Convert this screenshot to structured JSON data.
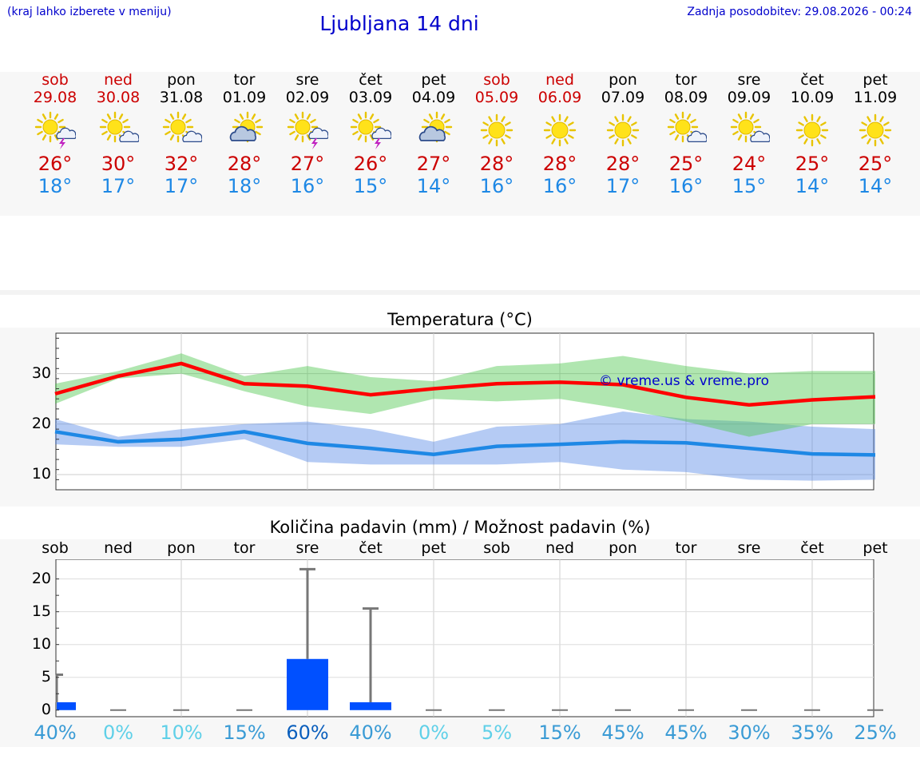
{
  "header": {
    "hint": "(kraj lahko izberete v meniju)",
    "title": "Ljubljana 14 dni",
    "updated": "Zadnja posodobitev: 29.08.2026 - 00:24"
  },
  "colors": {
    "weekend": "#cc0000",
    "max": "#cc0000",
    "min": "#1e88e5",
    "bar": "#0050ff",
    "link": "#0000cc"
  },
  "days": [
    {
      "name": "sob",
      "date": "29.08",
      "weekend": true,
      "icon": "sun-cloud-thunder-icon",
      "tmax": "26°",
      "tmin": "18°"
    },
    {
      "name": "ned",
      "date": "30.08",
      "weekend": true,
      "icon": "sun-cloud-icon",
      "tmax": "30°",
      "tmin": "17°"
    },
    {
      "name": "pon",
      "date": "31.08",
      "weekend": false,
      "icon": "sun-cloud-icon",
      "tmax": "32°",
      "tmin": "17°"
    },
    {
      "name": "tor",
      "date": "01.09",
      "weekend": false,
      "icon": "cloud-sun-icon",
      "tmax": "28°",
      "tmin": "18°"
    },
    {
      "name": "sre",
      "date": "02.09",
      "weekend": false,
      "icon": "sun-cloud-thunder-icon",
      "tmax": "27°",
      "tmin": "16°"
    },
    {
      "name": "čet",
      "date": "03.09",
      "weekend": false,
      "icon": "sun-cloud-thunder-icon",
      "tmax": "26°",
      "tmin": "15°"
    },
    {
      "name": "pet",
      "date": "04.09",
      "weekend": false,
      "icon": "cloud-sun-icon",
      "tmax": "27°",
      "tmin": "14°"
    },
    {
      "name": "sob",
      "date": "05.09",
      "weekend": true,
      "icon": "sun-icon",
      "tmax": "28°",
      "tmin": "16°"
    },
    {
      "name": "ned",
      "date": "06.09",
      "weekend": true,
      "icon": "sun-icon",
      "tmax": "28°",
      "tmin": "16°"
    },
    {
      "name": "pon",
      "date": "07.09",
      "weekend": false,
      "icon": "sun-icon",
      "tmax": "28°",
      "tmin": "17°"
    },
    {
      "name": "tor",
      "date": "08.09",
      "weekend": false,
      "icon": "sun-cloud-icon",
      "tmax": "25°",
      "tmin": "16°"
    },
    {
      "name": "sre",
      "date": "09.09",
      "weekend": false,
      "icon": "sun-cloud-icon",
      "tmax": "24°",
      "tmin": "15°"
    },
    {
      "name": "čet",
      "date": "10.09",
      "weekend": false,
      "icon": "sun-icon",
      "tmax": "25°",
      "tmin": "14°"
    },
    {
      "name": "pet",
      "date": "11.09",
      "weekend": false,
      "icon": "sun-icon",
      "tmax": "25°",
      "tmin": "14°"
    }
  ],
  "chart_data": [
    {
      "type": "line",
      "title": "Temperatura (°C)",
      "watermark": "© vreme.us & vreme.pro",
      "ylim": [
        7,
        38
      ],
      "yticks": [
        "10",
        "20",
        "30"
      ],
      "grid": true,
      "series": [
        {
          "color": "#ff0000",
          "values": [
            26,
            29.5,
            32,
            28,
            27.5,
            25.8,
            27,
            28,
            28.3,
            27.8,
            25.3,
            23.8,
            24.8,
            25.4
          ]
        },
        {
          "color": "#1e88e5",
          "values": [
            18.5,
            16.5,
            17,
            18.5,
            16.2,
            15.2,
            14,
            15.6,
            16,
            16.5,
            16.3,
            15.2,
            14.1,
            13.9
          ]
        }
      ],
      "band_max": {
        "low": [
          24,
          29,
          30,
          26.5,
          23.5,
          22,
          25,
          24.5,
          25,
          23,
          20.5,
          17.5,
          20,
          20
        ],
        "high": [
          28,
          30.5,
          34,
          29.5,
          31.5,
          29.3,
          28.5,
          31.5,
          32,
          33.5,
          31.5,
          30,
          30.5,
          30.5
        ]
      },
      "band_min": {
        "low": [
          16,
          15.5,
          15.5,
          17,
          12.5,
          12,
          12,
          12,
          12.5,
          11,
          10.5,
          9,
          8.8,
          9
        ],
        "high": [
          21,
          17.5,
          19,
          20,
          20.5,
          19,
          16.5,
          19.5,
          20,
          22.5,
          21,
          20.5,
          19.5,
          19
        ]
      }
    },
    {
      "type": "bar",
      "title": "Količina padavin (mm) / Možnost padavin (%)",
      "categories": [
        "sob",
        "ned",
        "pon",
        "tor",
        "sre",
        "čet",
        "pet",
        "sob",
        "ned",
        "pon",
        "tor",
        "sre",
        "čet",
        "pet"
      ],
      "ylim": [
        -1,
        23
      ],
      "yticks": [
        "0",
        "5",
        "10",
        "15",
        "20"
      ],
      "values": [
        1.2,
        0,
        0,
        0,
        7.8,
        1.2,
        0,
        0,
        0,
        0,
        0,
        0,
        0,
        0
      ],
      "error_high": [
        5.4,
        0,
        0,
        0,
        21.5,
        15.5,
        0,
        0,
        0,
        0,
        0,
        0,
        0,
        0
      ],
      "chance": [
        "40%",
        "0%",
        "10%",
        "15%",
        "60%",
        "40%",
        "0%",
        "5%",
        "15%",
        "45%",
        "45%",
        "30%",
        "35%",
        "25%"
      ],
      "chance_colors": [
        "#3a9bd5",
        "#5fd0e8",
        "#5fd0e8",
        "#3a9bd5",
        "#0b5fbd",
        "#3a9bd5",
        "#5fd0e8",
        "#5fd0e8",
        "#3a9bd5",
        "#3a9bd5",
        "#3a9bd5",
        "#3a9bd5",
        "#3a9bd5",
        "#3a9bd5"
      ]
    }
  ]
}
